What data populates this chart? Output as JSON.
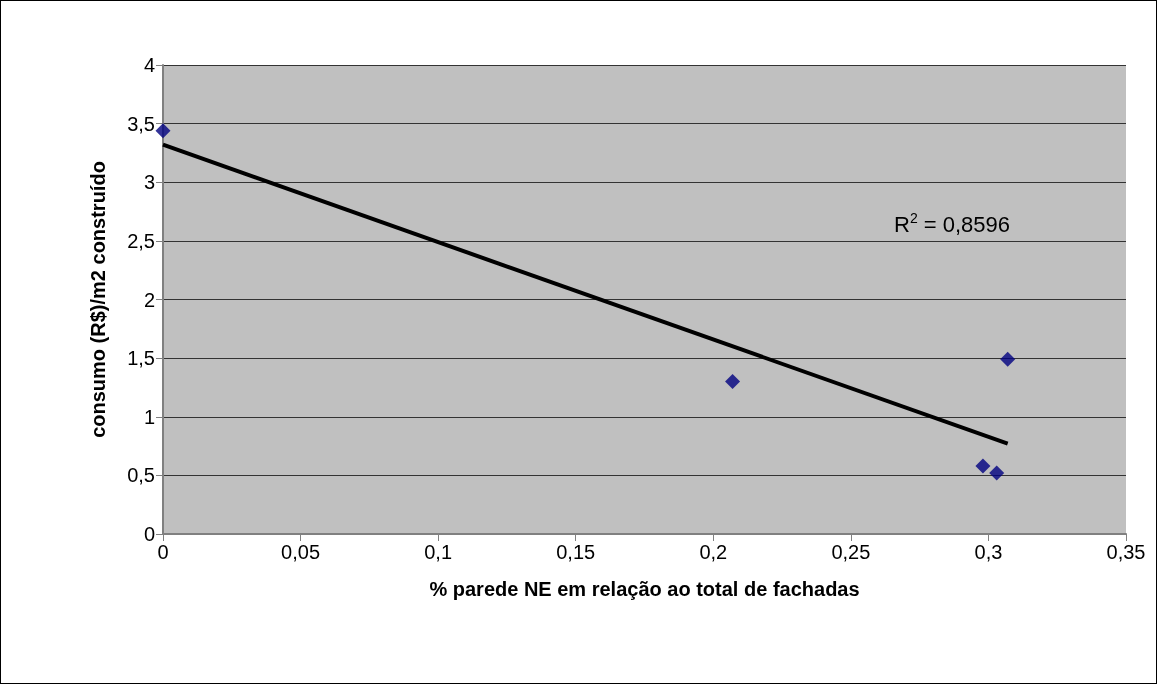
{
  "chart_data": {
    "type": "scatter",
    "xlabel": "% parede NE em relação ao total de fachadas",
    "ylabel": "consumo (R$)/m2 construído",
    "series": [
      {
        "color": "#000080",
        "marker": "diamond",
        "x": [
          0,
          0.207,
          0.307,
          0.298,
          0.303
        ],
        "values": [
          3.44,
          1.3,
          1.49,
          0.58,
          0.52
        ]
      },
      {
        "type": "line",
        "color": "#000000",
        "marker": "none",
        "line_style": "solid",
        "x": [
          0,
          0.307
        ],
        "values": [
          3.32,
          0.77
        ]
      }
    ],
    "xlim": [
      0,
      0.35
    ],
    "ylim": [
      0,
      4
    ],
    "xticks": [
      0,
      {
        "value": 0.05,
        "label": "0,05"
      },
      {
        "value": 0.1,
        "label": "0,1"
      },
      {
        "value": 0.15,
        "label": "0,15"
      },
      {
        "value": 0.2,
        "label": "0,2"
      },
      {
        "value": 0.25,
        "label": "0,25"
      },
      {
        "value": 0.3,
        "label": "0,3"
      },
      {
        "value": 0.35,
        "label": "0,35"
      }
    ],
    "yticks": [
      0,
      {
        "value": 0.5,
        "label": "0,5"
      },
      1,
      {
        "value": 1.5,
        "label": "1,5"
      },
      2,
      {
        "value": 2.5,
        "label": "2,5"
      },
      3,
      {
        "value": 3.5,
        "label": "3,5"
      },
      4
    ],
    "grid": "y",
    "annotations": [
      "R$^{2}$ = 0,8596"
    ]
  }
}
